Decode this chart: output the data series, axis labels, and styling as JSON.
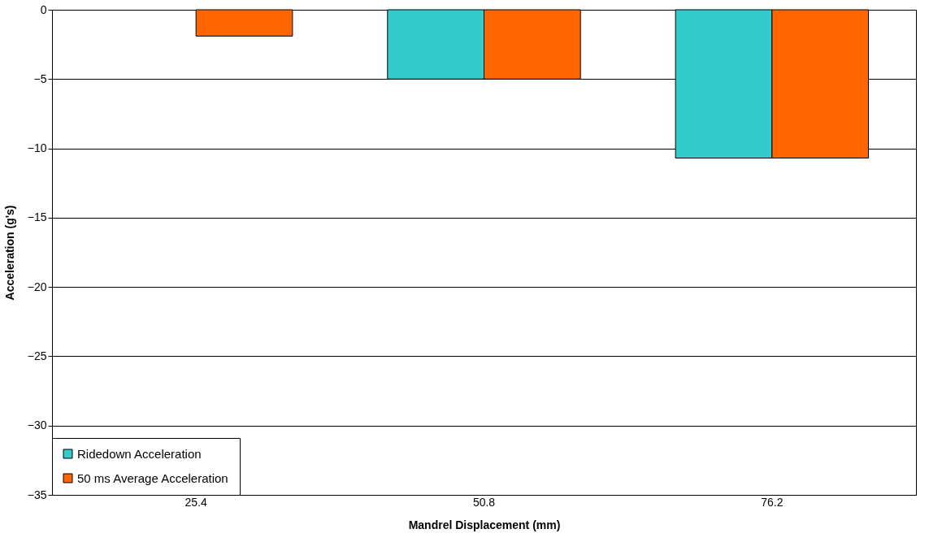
{
  "chart_data": {
    "type": "bar",
    "xlabel": "Mandrel Displacement (mm)",
    "ylabel": "Acceleration (g's)",
    "categories": [
      "25.4",
      "50.8",
      "76.2"
    ],
    "series": [
      {
        "name": "Ridedown Acceleration",
        "color": "#33cccc",
        "values": [
          null,
          -5,
          -10.7
        ]
      },
      {
        "name": "50 ms Average Acceleration",
        "color": "#ff6600",
        "values": [
          -1.9,
          -5,
          -10.7
        ]
      }
    ],
    "ylim": [
      -35,
      0
    ],
    "yticks": [
      -35,
      -30,
      -25,
      -20,
      -15,
      -10,
      -5,
      0
    ],
    "grid": "y",
    "legend": "bottom left"
  }
}
